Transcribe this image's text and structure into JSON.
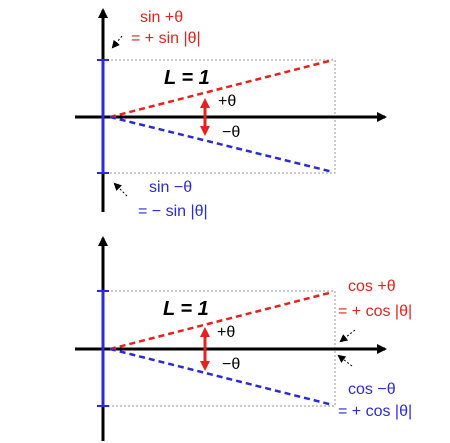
{
  "top": {
    "sin_pos_line1": "sin +θ",
    "sin_pos_line2": "= + sin |θ|",
    "length_label": "L = 1",
    "plus_theta": "+θ",
    "minus_theta": "−θ",
    "sin_neg_line1": "sin −θ",
    "sin_neg_line2": "= − sin |θ|"
  },
  "bottom": {
    "length_label": "L = 1",
    "plus_theta": "+θ",
    "minus_theta": "−θ",
    "cos_pos_line1": "cos +θ",
    "cos_pos_line2": "= + cos |θ|",
    "cos_neg_line1": "cos −θ",
    "cos_neg_line2": "= + cos |θ|"
  },
  "colors": {
    "positive_angle": "#e8201e",
    "negative_angle": "#2a2ad8",
    "axis": "#000000",
    "guide": "#999999"
  }
}
